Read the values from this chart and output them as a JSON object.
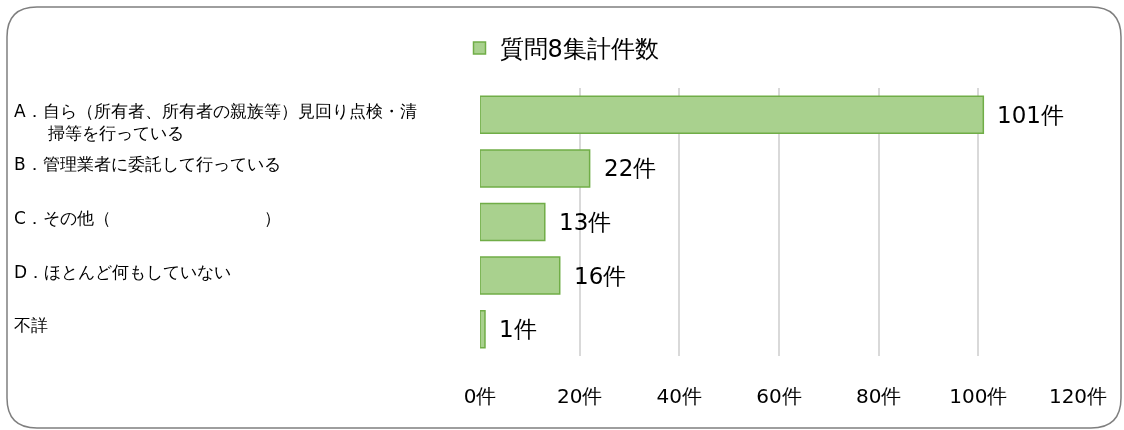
{
  "chart_data": {
    "type": "bar",
    "orientation": "horizontal",
    "categories": [
      "A．自ら（所有者、所有者の親族等）見回り点検・清掃等を行っている",
      "B．管理業者に委託して行っている",
      "C．その他（　　　　　　　　　）",
      "D．ほとんど何もしていない",
      "不詳"
    ],
    "series": [
      {
        "name": "質問8集計件数",
        "color": "#a9d18e",
        "values": [
          101,
          22,
          13,
          16,
          1
        ],
        "value_labels": [
          "101件",
          "22件",
          "13件",
          "16件",
          "1件"
        ]
      }
    ],
    "xlim": [
      0,
      120
    ],
    "xticks": [
      {
        "value": 0,
        "label": "0件"
      },
      {
        "value": 20,
        "label": "20件"
      },
      {
        "value": 40,
        "label": "40件"
      },
      {
        "value": 60,
        "label": "60件"
      },
      {
        "value": 80,
        "label": "80件"
      },
      {
        "value": 100,
        "label": "100件"
      },
      {
        "value": 120,
        "label": "120件"
      }
    ],
    "grid": "x",
    "legend": "top"
  }
}
